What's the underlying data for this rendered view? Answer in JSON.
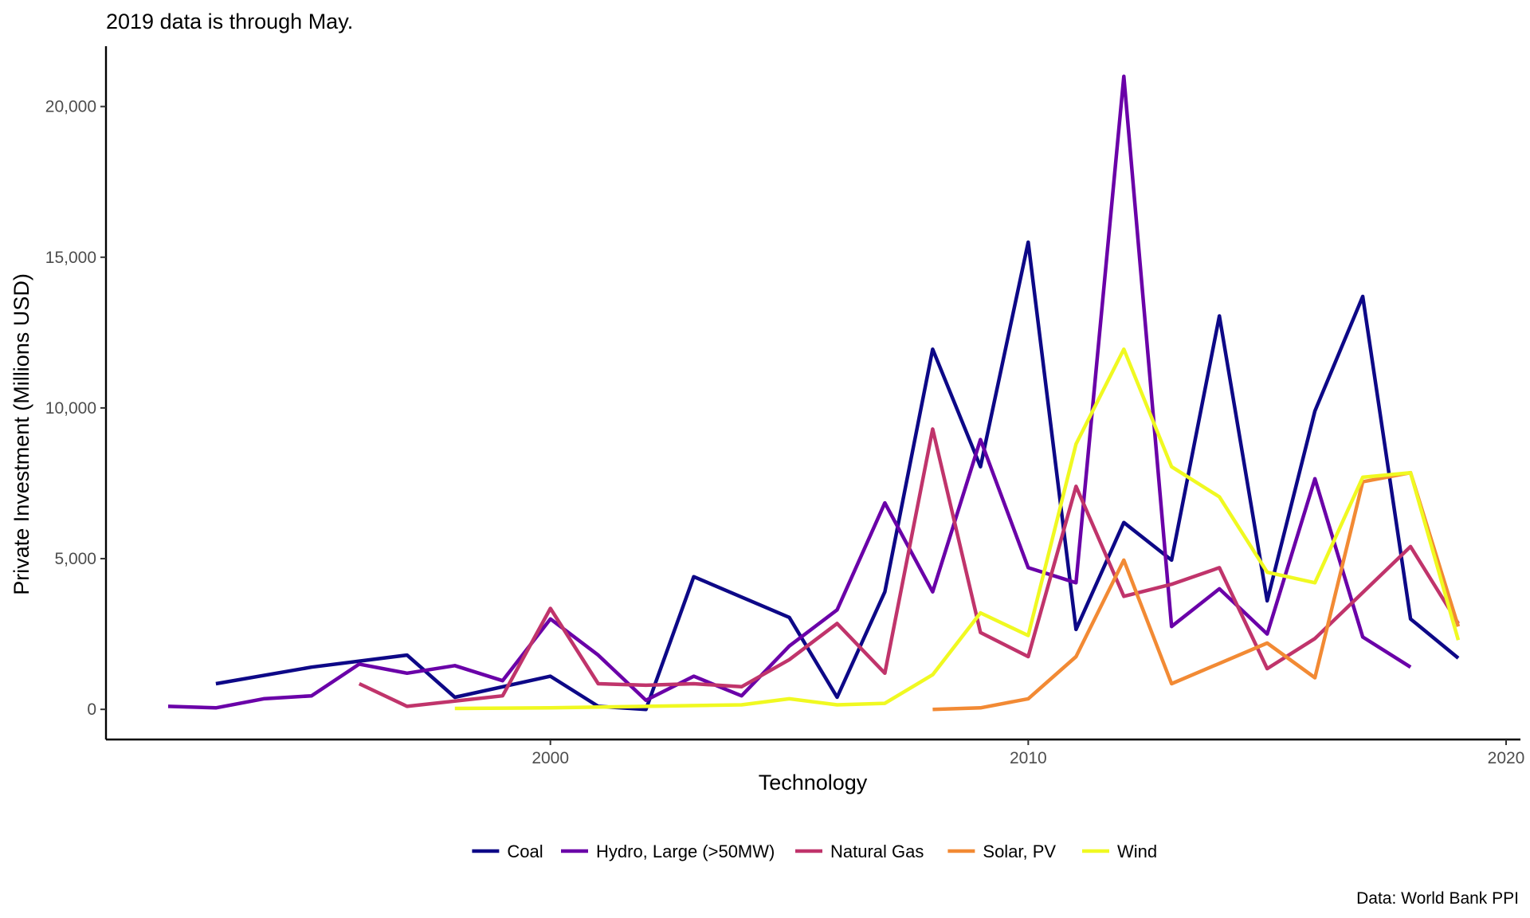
{
  "chart_data": {
    "type": "line",
    "title": "",
    "subtitle": "2019 data is through May.",
    "xlabel": "Technology",
    "ylabel": "Private Investment (Millions USD)",
    "caption": "Data: World Bank PPI",
    "xlim": [
      1990.7,
      2020.3
    ],
    "ylim": [
      -1000,
      22000
    ],
    "x_ticks": [
      2000,
      2010,
      2020
    ],
    "x_tick_labels": [
      "2000",
      "2010",
      "2020"
    ],
    "y_ticks": [
      0,
      5000,
      10000,
      15000,
      20000
    ],
    "y_tick_labels": [
      "0",
      "5,000",
      "10,000",
      "15,000",
      "20,000"
    ],
    "legend_position": "bottom",
    "series": [
      {
        "name": "Coal",
        "color": "#0d0887",
        "x": [
          1993,
          1995,
          1997,
          1998,
          2000,
          2001,
          2002,
          2003,
          2005,
          2006,
          2007,
          2008,
          2009,
          2010,
          2011,
          2012,
          2013,
          2014,
          2015,
          2016,
          2017,
          2018,
          2019
        ],
        "values": [
          850,
          1400,
          1800,
          400,
          1100,
          100,
          0,
          4400,
          3050,
          400,
          3900,
          11950,
          8050,
          15500,
          2650,
          6200,
          4950,
          13050,
          3600,
          9900,
          13700,
          3000,
          1700
        ]
      },
      {
        "name": "Hydro, Large (>50MW)",
        "color": "#6a00a8",
        "x": [
          1992,
          1993,
          1994,
          1995,
          1996,
          1997,
          1998,
          1999,
          2000,
          2001,
          2002,
          2003,
          2004,
          2005,
          2006,
          2007,
          2008,
          2009,
          2010,
          2011,
          2012,
          2013,
          2014,
          2015,
          2016,
          2017,
          2018
        ],
        "values": [
          100,
          50,
          350,
          450,
          1500,
          1200,
          1450,
          950,
          3000,
          1800,
          300,
          1100,
          450,
          2100,
          3300,
          6850,
          3900,
          8950,
          4700,
          4200,
          21000,
          2750,
          4000,
          2500,
          7650,
          2400,
          1400
        ]
      },
      {
        "name": "Natural Gas",
        "color": "#b12a90",
        "x": [
          1996,
          1997,
          1999,
          2000,
          2001,
          2002,
          2003,
          2004,
          2005,
          2006,
          2007,
          2008,
          2009,
          2010,
          2011,
          2012,
          2013,
          2014,
          2015,
          2016,
          2018,
          2019
        ],
        "values": [
          850,
          100,
          450,
          3350,
          850,
          800,
          850,
          750,
          1650,
          2850,
          1200,
          9300,
          2550,
          1750,
          7400,
          3750,
          4150,
          4700,
          1350,
          2350,
          5400,
          2850
        ]
      },
      {
        "name": "Solar, PV",
        "color": "#e16462",
        "x": [
          2008,
          2009,
          2010,
          2011,
          2012,
          2013,
          2015,
          2016,
          2017,
          2018,
          2019
        ],
        "values": [
          0,
          50,
          350,
          1750,
          4950,
          850,
          2200,
          1050,
          7550,
          7850,
          2750
        ]
      },
      {
        "name": "Wind",
        "color": "#f0f921",
        "x": [
          1998,
          2000,
          2002,
          2004,
          2005,
          2006,
          2007,
          2008,
          2009,
          2010,
          2011,
          2012,
          2013,
          2014,
          2015,
          2016,
          2017,
          2018,
          2019
        ],
        "values": [
          30,
          50,
          100,
          150,
          350,
          150,
          200,
          1150,
          3200,
          2450,
          8800,
          11950,
          8050,
          7050,
          4550,
          4200,
          7700,
          7850,
          2300
        ]
      }
    ],
    "series_stroke_colors": [
      "#0d0887",
      "#6a00a8",
      "#c0346b",
      "#f28a34",
      "#f0f921"
    ]
  }
}
